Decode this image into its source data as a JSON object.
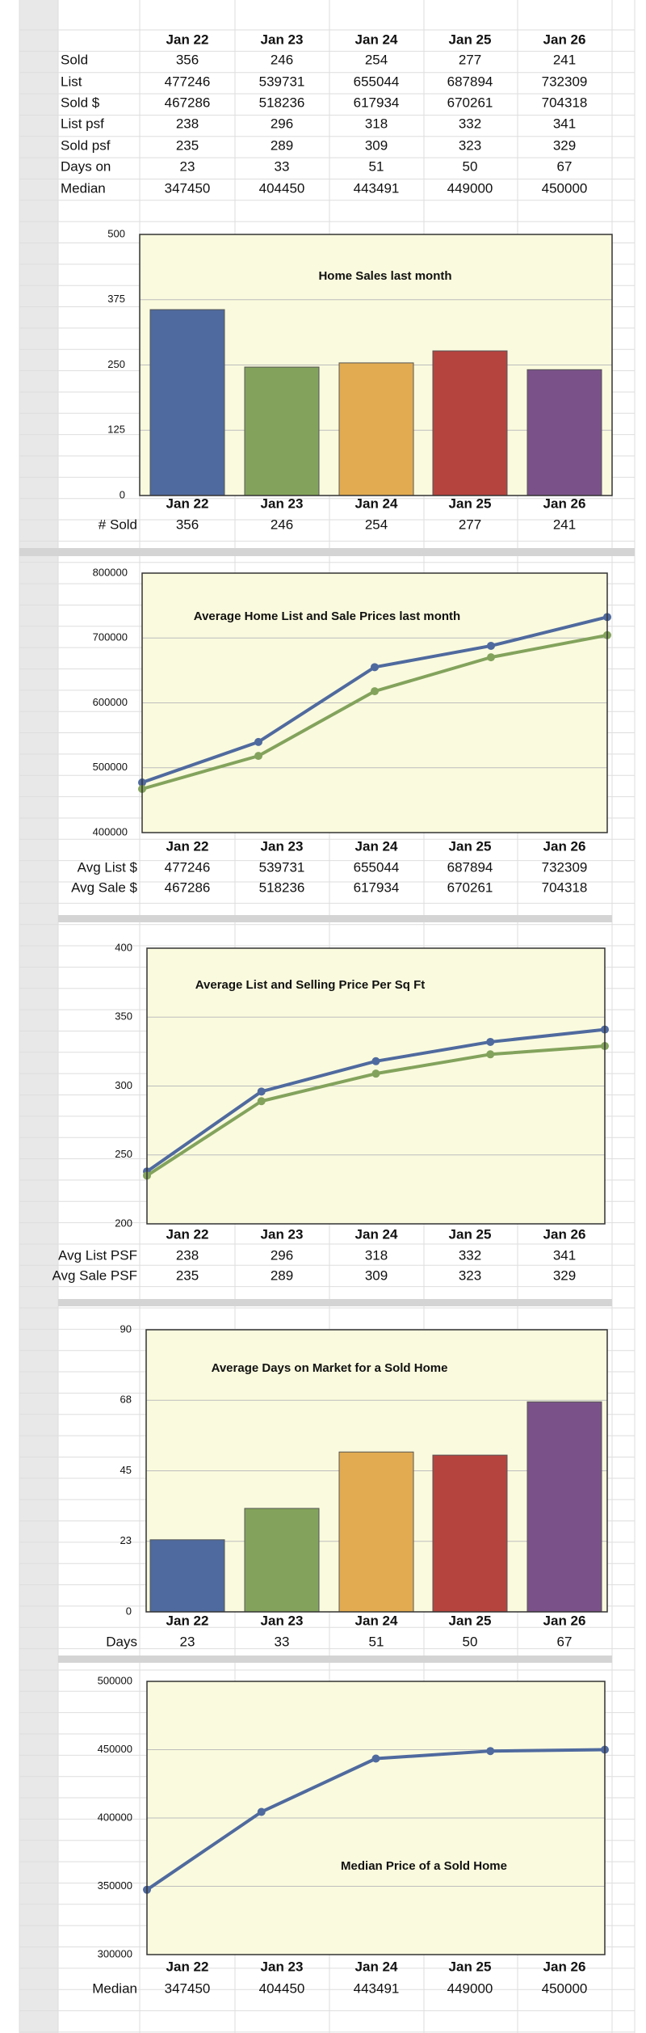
{
  "table": {
    "columns": [
      "Jan 22",
      "Jan 23",
      "Jan 24",
      "Jan 25",
      "Jan 26"
    ],
    "rows": [
      [
        "Sold",
        356,
        246,
        254,
        277,
        241
      ],
      [
        "List",
        477246,
        539731,
        655044,
        687894,
        732309
      ],
      [
        "Sold $",
        467286,
        518236,
        617934,
        670261,
        704318
      ],
      [
        "List psf",
        238,
        296,
        318,
        332,
        341
      ],
      [
        "Sold psf",
        235,
        289,
        309,
        323,
        329
      ],
      [
        "Days on",
        23,
        33,
        51,
        50,
        67
      ],
      [
        "Median",
        347450,
        404450,
        443491,
        449000,
        450000
      ]
    ]
  },
  "chart_data": [
    {
      "type": "bar",
      "title": "Home Sales last month",
      "categories": [
        "Jan 22",
        "Jan 23",
        "Jan 24",
        "Jan 25",
        "Jan 26"
      ],
      "series": [
        {
          "name": "# Sold",
          "values": [
            356,
            246,
            254,
            277,
            241
          ],
          "colors": [
            "#4f6a9e",
            "#83a35c",
            "#e2ab51",
            "#b5443f",
            "#7a5289"
          ]
        }
      ],
      "ylim": [
        0,
        500
      ],
      "yticks": [
        0,
        125,
        250,
        375,
        500
      ],
      "grid": true
    },
    {
      "type": "line",
      "title": "Average Home List and Sale Prices last month",
      "categories": [
        "Jan 22",
        "Jan 23",
        "Jan 24",
        "Jan 25",
        "Jan 26"
      ],
      "series": [
        {
          "name": "Avg List $",
          "color": "#4f6a9e",
          "values": [
            477246,
            539731,
            655044,
            687894,
            732309
          ]
        },
        {
          "name": "Avg Sale $",
          "color": "#83a35c",
          "values": [
            467286,
            518236,
            617934,
            670261,
            704318
          ]
        }
      ],
      "ylim": [
        400000,
        800000
      ],
      "yticks": [
        400000,
        500000,
        600000,
        700000,
        800000
      ],
      "grid": true
    },
    {
      "type": "line",
      "title": "Average List and Selling Price Per Sq Ft",
      "categories": [
        "Jan 22",
        "Jan 23",
        "Jan 24",
        "Jan 25",
        "Jan 26"
      ],
      "series": [
        {
          "name": "Avg List PSF",
          "color": "#4f6a9e",
          "values": [
            238,
            296,
            318,
            332,
            341
          ]
        },
        {
          "name": "Avg Sale PSF",
          "color": "#83a35c",
          "values": [
            235,
            289,
            309,
            323,
            329
          ]
        }
      ],
      "ylim": [
        200,
        400
      ],
      "yticks": [
        200,
        250,
        300,
        350,
        400
      ],
      "grid": true
    },
    {
      "type": "bar",
      "title": "Average Days on Market for a Sold Home",
      "categories": [
        "Jan 22",
        "Jan 23",
        "Jan 24",
        "Jan 25",
        "Jan 26"
      ],
      "series": [
        {
          "name": "Days",
          "values": [
            23,
            33,
            51,
            50,
            67
          ],
          "colors": [
            "#4f6a9e",
            "#83a35c",
            "#e2ab51",
            "#b5443f",
            "#7a5289"
          ]
        }
      ],
      "ylim": [
        0,
        90
      ],
      "yticks": [
        0,
        {
          "value": 22.5,
          "label": "23"
        },
        45,
        {
          "value": 67.5,
          "label": "68"
        },
        90
      ],
      "grid": true
    },
    {
      "type": "line",
      "title": "Median Price of a Sold Home",
      "categories": [
        "Jan 22",
        "Jan 23",
        "Jan 24",
        "Jan 25",
        "Jan 26"
      ],
      "series": [
        {
          "name": "Median",
          "color": "#4f6a9e",
          "values": [
            347450,
            404450,
            443491,
            449000,
            450000
          ]
        }
      ],
      "ylim": [
        300000,
        500000
      ],
      "yticks": [
        300000,
        350000,
        400000,
        450000,
        500000
      ],
      "grid": true
    }
  ]
}
